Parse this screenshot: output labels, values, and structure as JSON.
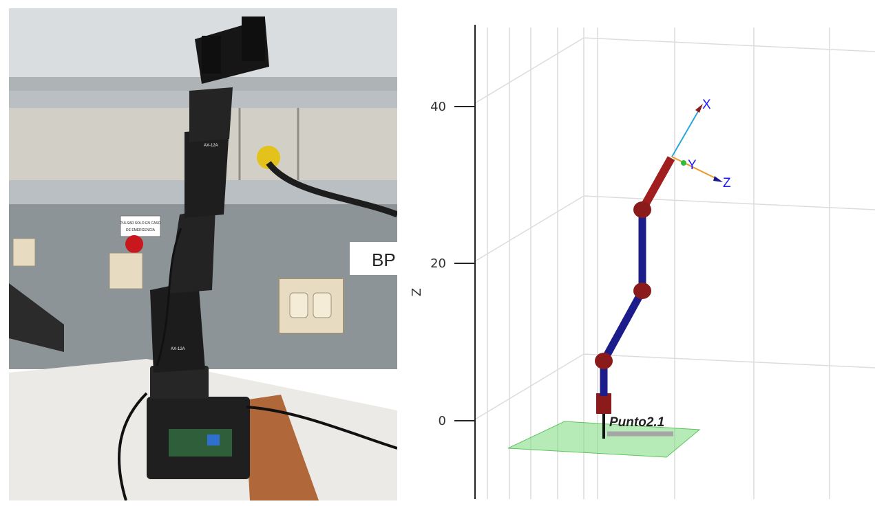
{
  "photo": {
    "wall_sign_lines": [
      "PULSAR SOLO EN CASO",
      "DE EMERGENCIA"
    ],
    "bench_label": "BP",
    "servo_label": "AX-12A"
  },
  "plot": {
    "axis_title_z": "Z",
    "z_ticks": [
      "40",
      "20",
      "0"
    ],
    "frame_labels": {
      "x": "X",
      "y": "Y",
      "z": "Z"
    },
    "point_label": "Punto2.1",
    "colors": {
      "link_segments": "#1c1c8a",
      "joints": "#8b1a1a",
      "end_link": "#a01e1e",
      "base_block": "#8b1a1a",
      "ground_patch": "#7ad97a",
      "grid": "#dcdcdc",
      "frame_x": "#2aa7d8",
      "frame_z": "#e89a2a",
      "frame_y": "#2bbf3a",
      "label_blue": "#1a1aff"
    }
  }
}
